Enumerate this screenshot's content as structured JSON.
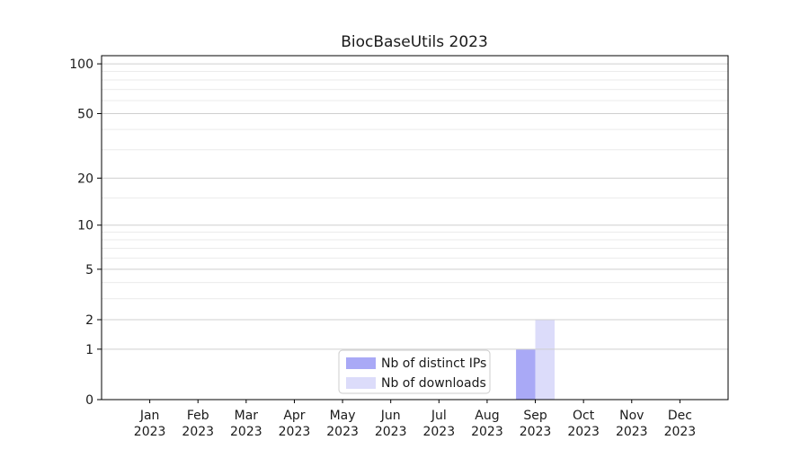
{
  "chart_data": {
    "type": "bar",
    "title": "BiocBaseUtils 2023",
    "categories": [
      "Jan",
      "Feb",
      "Mar",
      "Apr",
      "May",
      "Jun",
      "Jul",
      "Aug",
      "Sep",
      "Oct",
      "Nov",
      "Dec"
    ],
    "category_year": "2023",
    "series": [
      {
        "name": "Nb of distinct IPs",
        "color": "#a9a9f6",
        "values": [
          0,
          0,
          0,
          0,
          0,
          0,
          0,
          0,
          1,
          0,
          0,
          0
        ]
      },
      {
        "name": "Nb of downloads",
        "color": "#dcdcfa",
        "values": [
          0,
          0,
          0,
          0,
          0,
          0,
          0,
          0,
          2,
          0,
          0,
          0
        ]
      }
    ],
    "xlabel": "",
    "ylabel": "",
    "y_scale": "log1p",
    "y_axis": {
      "major_ticks": [
        0,
        1,
        2,
        5,
        10,
        20,
        50,
        100
      ],
      "minor_gridlines": [
        3,
        4,
        6,
        7,
        8,
        9,
        15,
        30,
        40,
        60,
        70,
        80,
        90
      ],
      "max": 112
    },
    "grid": {
      "on": true,
      "major_color": "#cfcfcf",
      "minor_color": "#ebebeb"
    },
    "axis_color": "#000000",
    "legend": {
      "position": "lower-center",
      "border_color": "#cccccc",
      "background": "#ffffff"
    }
  }
}
